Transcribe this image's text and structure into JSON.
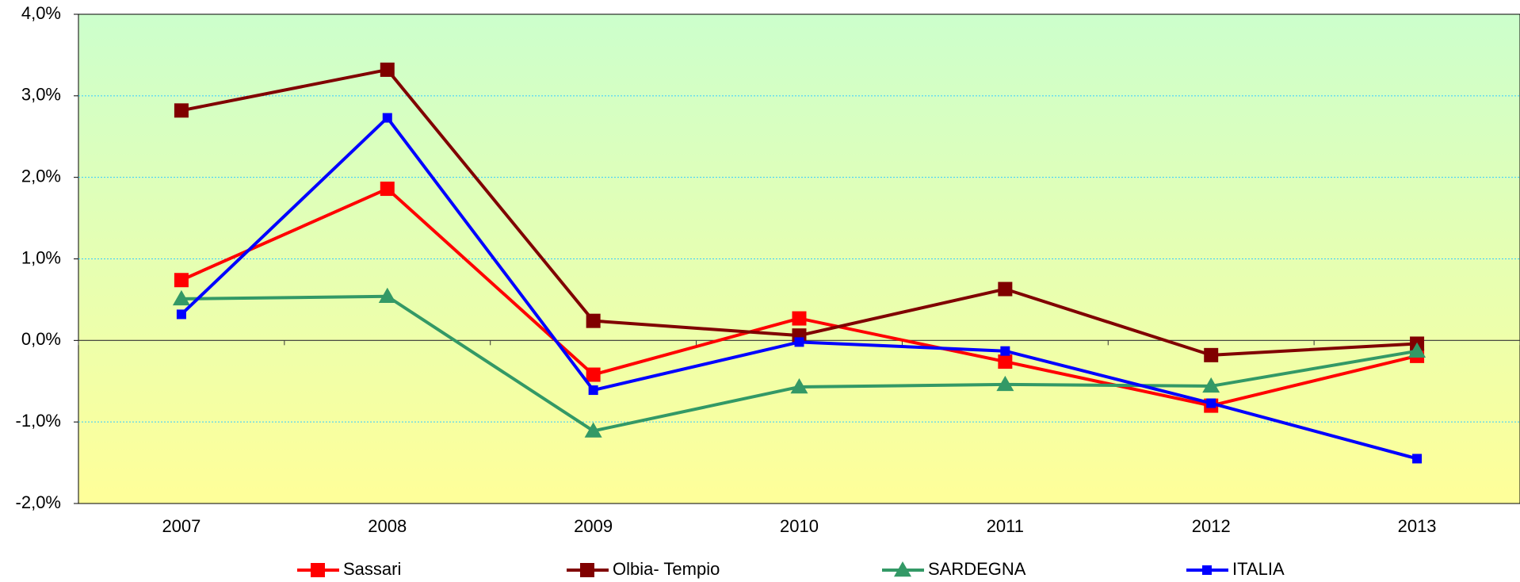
{
  "chart_data": {
    "type": "line",
    "categories": [
      "2007",
      "2008",
      "2009",
      "2010",
      "2011",
      "2012",
      "2013"
    ],
    "series": [
      {
        "name": "Sassari",
        "color": "#ff0000",
        "marker": "square",
        "values": [
          0.74,
          1.86,
          -0.42,
          0.27,
          -0.26,
          -0.8,
          -0.19
        ]
      },
      {
        "name": "Olbia- Tempio",
        "color": "#800000",
        "marker": "square",
        "values": [
          2.82,
          3.32,
          0.24,
          0.06,
          0.63,
          -0.18,
          -0.04
        ]
      },
      {
        "name": "SARDEGNA",
        "color": "#339966",
        "marker": "triangle",
        "values": [
          0.51,
          0.54,
          -1.11,
          -0.57,
          -0.54,
          -0.56,
          -0.13
        ]
      },
      {
        "name": "ITALIA",
        "color": "#0000ff",
        "marker": "small-square",
        "values": [
          0.32,
          2.73,
          -0.61,
          -0.02,
          -0.13,
          -0.77,
          -1.45
        ]
      }
    ],
    "ylim": [
      -2,
      4
    ],
    "yticks": [
      {
        "value": -2,
        "label": "-2,0%"
      },
      {
        "value": -1,
        "label": "-1,0%"
      },
      {
        "value": 0,
        "label": "0,0%"
      },
      {
        "value": 1,
        "label": "1,0%"
      },
      {
        "value": 2,
        "label": "2,0%"
      },
      {
        "value": 3,
        "label": "3,0%"
      },
      {
        "value": 4,
        "label": "4,0%"
      }
    ],
    "grid": true,
    "legend": "bottom"
  }
}
